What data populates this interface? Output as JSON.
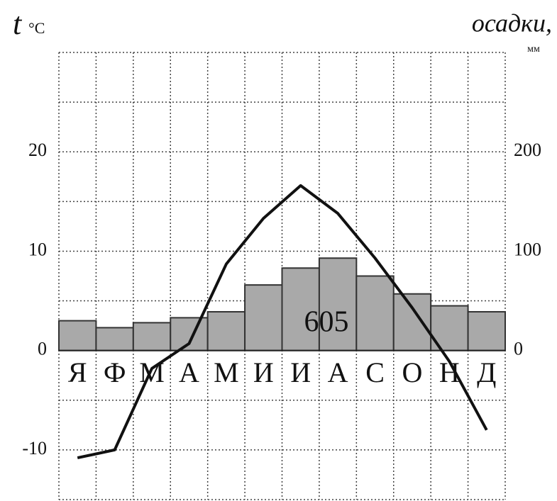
{
  "chart_data": {
    "type": "combo",
    "ylabel": "t",
    "yunit": "°C",
    "y2label": "осадки,",
    "y2unit": "мм",
    "annotation": "605",
    "categories": [
      "Я",
      "Ф",
      "М",
      "А",
      "М",
      "И",
      "И",
      "А",
      "С",
      "О",
      "Н",
      "Д"
    ],
    "series": [
      {
        "type": "bar",
        "axis": "y2",
        "color": "#a9a9a9",
        "values": [
          30,
          23,
          28,
          33,
          39,
          66,
          83,
          93,
          75,
          57,
          45,
          39
        ]
      },
      {
        "type": "line",
        "color": "#111111",
        "values": [
          -10.8,
          -10,
          -1.8,
          0.7,
          8.7,
          13.3,
          16.6,
          13.8,
          9.3,
          4.3,
          -1.1,
          -8.0
        ]
      }
    ],
    "ylim": [
      -15,
      30
    ],
    "yticks": [
      -10,
      0,
      10,
      20
    ],
    "ygrid": [
      -15,
      -10,
      -5,
      0,
      5,
      10,
      15,
      20,
      25,
      30
    ],
    "y2lim": [
      -150,
      300
    ],
    "y2ticks": [
      0,
      100,
      200
    ],
    "grid": true
  }
}
